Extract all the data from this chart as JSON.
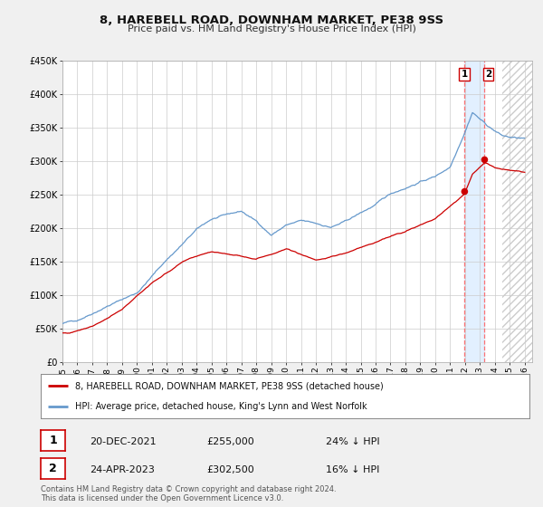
{
  "title": "8, HAREBELL ROAD, DOWNHAM MARKET, PE38 9SS",
  "subtitle": "Price paid vs. HM Land Registry's House Price Index (HPI)",
  "legend_line1": "8, HAREBELL ROAD, DOWNHAM MARKET, PE38 9SS (detached house)",
  "legend_line2": "HPI: Average price, detached house, King's Lynn and West Norfolk",
  "footer1": "Contains HM Land Registry data © Crown copyright and database right 2024.",
  "footer2": "This data is licensed under the Open Government Licence v3.0.",
  "sale1_date": "20-DEC-2021",
  "sale1_price": "£255,000",
  "sale1_hpi": "24% ↓ HPI",
  "sale1_year": 2021.97,
  "sale1_value": 255000,
  "sale2_date": "24-APR-2023",
  "sale2_price": "£302,500",
  "sale2_hpi": "16% ↓ HPI",
  "sale2_year": 2023.31,
  "sale2_value": 302500,
  "house_color": "#cc0000",
  "hpi_color": "#6699cc",
  "background_color": "#f0f0f0",
  "plot_bg_color": "#ffffff",
  "highlight_bg": "#ddeeff",
  "ylim": [
    0,
    450000
  ],
  "xlim_start": 1995.0,
  "xlim_end": 2026.5,
  "yticks": [
    0,
    50000,
    100000,
    150000,
    200000,
    250000,
    300000,
    350000,
    400000,
    450000
  ],
  "ytick_labels": [
    "£0",
    "£50K",
    "£100K",
    "£150K",
    "£200K",
    "£250K",
    "£300K",
    "£350K",
    "£400K",
    "£450K"
  ],
  "xticks": [
    1995,
    1996,
    1997,
    1998,
    1999,
    2000,
    2001,
    2002,
    2003,
    2004,
    2005,
    2006,
    2007,
    2008,
    2009,
    2010,
    2011,
    2012,
    2013,
    2014,
    2015,
    2016,
    2017,
    2018,
    2019,
    2020,
    2021,
    2022,
    2023,
    2024,
    2025,
    2026
  ],
  "future_cutoff": 2024.5,
  "hatch_color": "#cccccc"
}
